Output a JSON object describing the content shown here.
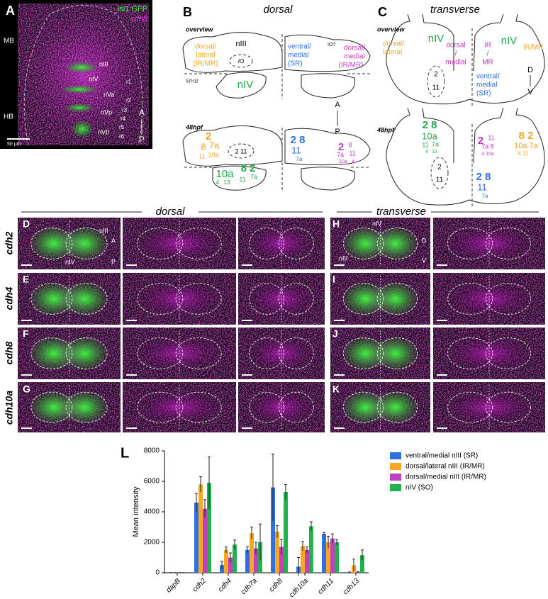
{
  "panel_a": {
    "letter": "A",
    "legend": [
      "Isl1:GFP",
      "cdh8"
    ],
    "regions": [
      "MB",
      "HB"
    ],
    "nuclei": [
      "nIII",
      "nIV",
      "nVa",
      "nVp",
      "nVII"
    ],
    "rhombomeres": [
      "r1",
      "r2",
      "r3",
      "r4",
      "r5",
      "r6"
    ],
    "axis": [
      "A",
      "P"
    ],
    "scale_bar": "50 µm"
  },
  "panel_b": {
    "letter": "B",
    "title": "dorsal",
    "overview": "overview",
    "stage": "48hpf",
    "overview_labels": [
      "nIII",
      "dorsal/",
      "lateral",
      "(IR/MR)",
      "IO",
      "ventral/",
      "medial",
      "(SR)",
      "IO?",
      "dorsal/",
      "medial",
      "(IR/MR)",
      "MHB",
      "nIV",
      "A",
      "P"
    ],
    "stage_labels": [
      "2",
      "8",
      "7a",
      "11",
      "10a",
      "2 11",
      "2 8",
      "11",
      "7a",
      "2",
      "8",
      "7a",
      "11",
      "10a",
      "4",
      "10a",
      "8 2",
      "4",
      "13",
      "11",
      "7a"
    ]
  },
  "panel_c": {
    "letter": "C",
    "title": "transverse",
    "overview": "overview",
    "stage": "48hpf",
    "overview_labels": [
      "nIV",
      "dorsal/",
      "lateral",
      "dorsal",
      "/",
      "medial",
      "IR",
      "/",
      "MR",
      "nIV",
      "IR/MR",
      "2",
      "11",
      "ventral/",
      "medial",
      "(SR)",
      "D",
      "V"
    ],
    "stage_labels": [
      "2 8",
      "10a",
      "11",
      "7a",
      "4",
      "13",
      "2",
      "11",
      "7a 8",
      "4 10a",
      "8 2",
      "10a 7a",
      "4 11",
      "2",
      "11",
      "2 8",
      "11",
      "7a"
    ]
  },
  "panels_d_k": {
    "headers": [
      "dorsal",
      "transverse"
    ],
    "rows": [
      "cdh2",
      "cdh4",
      "cdh8",
      "cdh10a"
    ],
    "letters": [
      "D",
      "E",
      "F",
      "G",
      "H",
      "I",
      "J",
      "K"
    ],
    "annotations_d": [
      "nIII",
      "nIV",
      "A",
      "P"
    ],
    "annotations_h": [
      "nIV",
      "nIII",
      "D",
      "V"
    ]
  },
  "chart_data": {
    "type": "bar",
    "label": "L",
    "y_label": "Mean intensity",
    "categories": [
      "dapB",
      "cdh2",
      "cdh4",
      "cdh7a",
      "cdh8",
      "cdh10a",
      "cdh11",
      "cdh13"
    ],
    "series": [
      {
        "name": "ventral/medial nIII (SR)",
        "color": "#2f6fe0",
        "values": [
          10,
          4600,
          500,
          1500,
          5600,
          400,
          2550,
          30
        ],
        "errors": [
          5,
          600,
          250,
          200,
          2200,
          600,
          100,
          20
        ]
      },
      {
        "name": "dorsal/lateral nIII (IR/MR)",
        "color": "#f5a623",
        "values": [
          10,
          5800,
          1500,
          2600,
          2700,
          1750,
          2000,
          500
        ],
        "errors": [
          5,
          500,
          200,
          400,
          400,
          300,
          400,
          400
        ]
      },
      {
        "name": "dorsal/medial nIII (IR/MR)",
        "color": "#c23fc2",
        "values": [
          10,
          4200,
          1000,
          1600,
          1700,
          1500,
          2250,
          50
        ],
        "errors": [
          5,
          600,
          300,
          400,
          500,
          200,
          300,
          20
        ]
      },
      {
        "name": "nIV (SO)",
        "color": "#22b14c",
        "values": [
          10,
          5900,
          1850,
          2000,
          5300,
          3050,
          2000,
          1150
        ],
        "errors": [
          5,
          1700,
          300,
          1200,
          500,
          300,
          200,
          350
        ]
      }
    ],
    "ylim": [
      0,
      8000
    ],
    "yticks": [
      0,
      2000,
      4000,
      6000,
      8000
    ],
    "grid": false,
    "legend": "right"
  }
}
